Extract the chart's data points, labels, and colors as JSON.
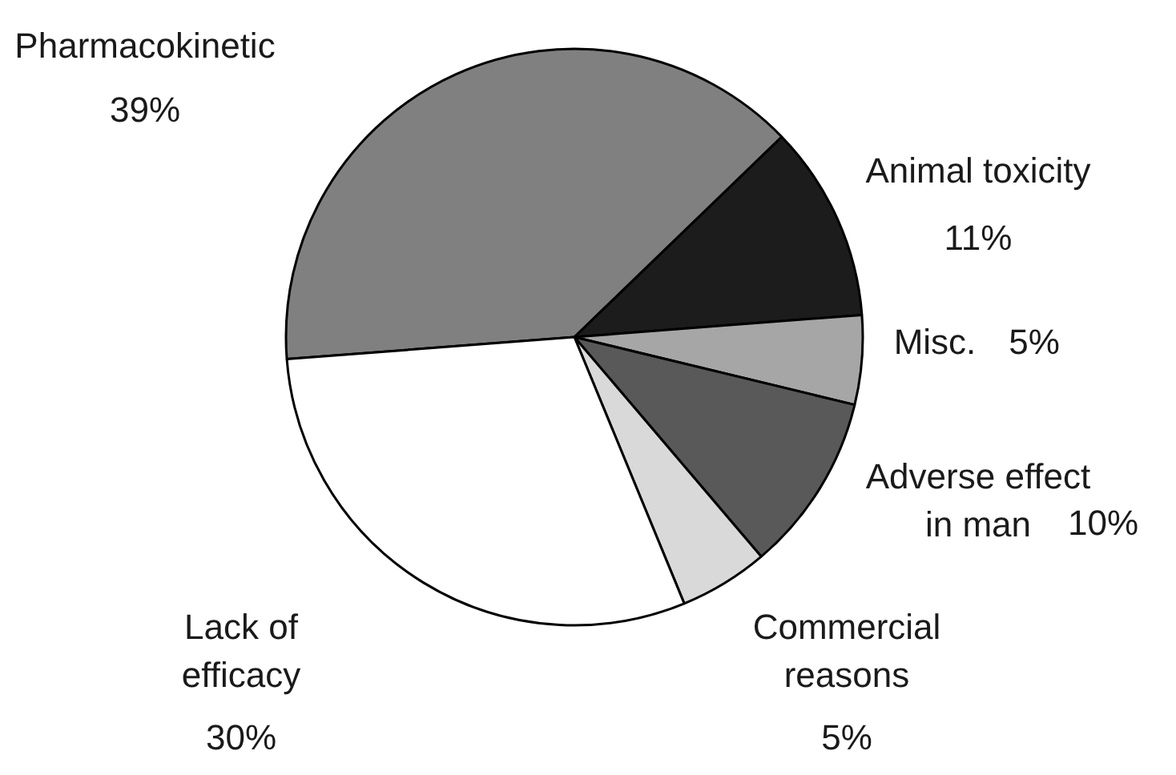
{
  "chart_data": {
    "type": "pie",
    "categories": [
      "Pharmacokinetic",
      "Animal toxicity",
      "Misc.",
      "Adverse effect in man",
      "Commercial reasons",
      "Lack of efficacy"
    ],
    "values": [
      39,
      11,
      5,
      10,
      5,
      30
    ],
    "colors": [
      "#808080",
      "#1c1c1c",
      "#a6a6a6",
      "#595959",
      "#d9d9d9",
      "#ffffff"
    ],
    "value_labels": [
      "39%",
      "11%",
      "5%",
      "10%",
      "5%",
      "30%"
    ]
  }
}
